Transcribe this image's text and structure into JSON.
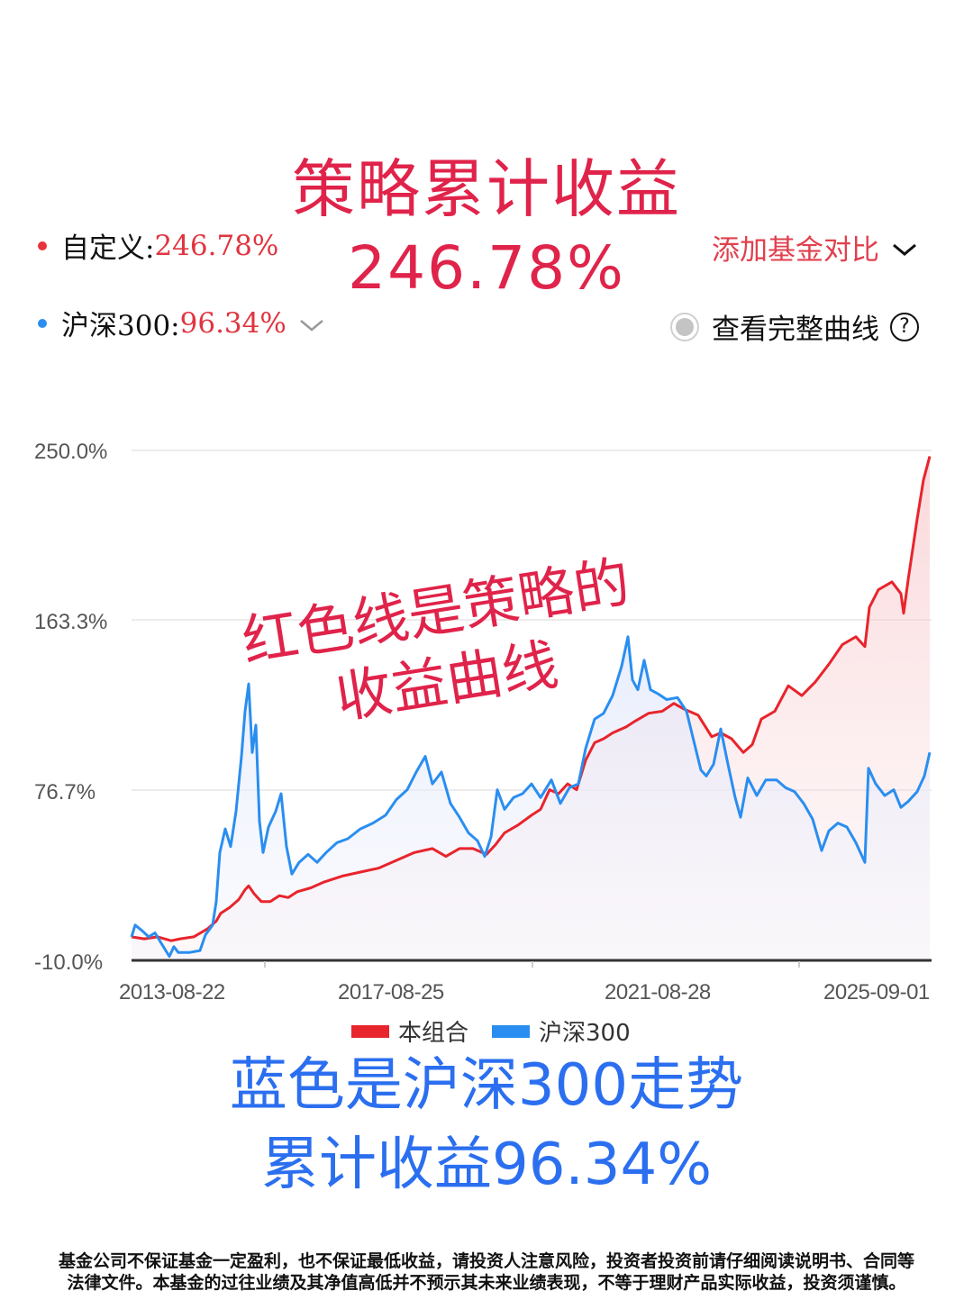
{
  "header": {
    "title_line1": "策略累计收益",
    "title_line2": "246.78%"
  },
  "legend_top": {
    "custom": {
      "label": "自定义:",
      "value": "246.78%",
      "dot_color": "#e8323c"
    },
    "hs300": {
      "label": "沪深300:",
      "value": "96.34%",
      "dot_color": "#2a8ef0",
      "chevron": "chevron-down-icon"
    },
    "add_compare": {
      "label": "添加基金对比",
      "chevron": "chevron-down-icon"
    },
    "full_curve": {
      "label": "查看完整曲线",
      "help_icon": "?"
    }
  },
  "annotation": {
    "line1": "红色线是策略的",
    "line2": "收益曲线"
  },
  "chart_data": {
    "type": "line",
    "title": "策略累计收益",
    "xlabel": "",
    "ylabel": "",
    "ylim": [
      -10.0,
      250.0
    ],
    "y_ticks": [
      "250.0%",
      "163.3%",
      "76.7%",
      "-10.0%"
    ],
    "x_ticks": [
      "2013-08-22",
      "2017-08-25",
      "2021-08-28",
      "2025-09-01"
    ],
    "grid": true,
    "legend_position": "bottom",
    "legend": [
      "本组合",
      "沪深300"
    ],
    "x_range": [
      "2012-01",
      "2025-09-01"
    ],
    "series": [
      {
        "name": "本组合",
        "color": "#e8242c",
        "final_value": 246.78,
        "points": [
          [
            146,
            2
          ],
          [
            160,
            1
          ],
          [
            175,
            2
          ],
          [
            190,
            0
          ],
          [
            200,
            1
          ],
          [
            215,
            2
          ],
          [
            230,
            6
          ],
          [
            240,
            10
          ],
          [
            245,
            14
          ],
          [
            255,
            17
          ],
          [
            265,
            21
          ],
          [
            272,
            26
          ],
          [
            276,
            28
          ],
          [
            282,
            24
          ],
          [
            290,
            20
          ],
          [
            300,
            20
          ],
          [
            310,
            23
          ],
          [
            320,
            22
          ],
          [
            330,
            25
          ],
          [
            345,
            27
          ],
          [
            360,
            30
          ],
          [
            380,
            33
          ],
          [
            400,
            35
          ],
          [
            420,
            37
          ],
          [
            440,
            41
          ],
          [
            460,
            45
          ],
          [
            480,
            47
          ],
          [
            495,
            43
          ],
          [
            510,
            47
          ],
          [
            525,
            47
          ],
          [
            540,
            44
          ],
          [
            550,
            49
          ],
          [
            560,
            55
          ],
          [
            575,
            59
          ],
          [
            590,
            64
          ],
          [
            600,
            67
          ],
          [
            610,
            77
          ],
          [
            620,
            75
          ],
          [
            630,
            80
          ],
          [
            640,
            77
          ],
          [
            650,
            92
          ],
          [
            660,
            101
          ],
          [
            670,
            103
          ],
          [
            680,
            106
          ],
          [
            695,
            109
          ],
          [
            705,
            112
          ],
          [
            720,
            116
          ],
          [
            735,
            117
          ],
          [
            748,
            121
          ],
          [
            760,
            118
          ],
          [
            775,
            115
          ],
          [
            790,
            104
          ],
          [
            800,
            106
          ],
          [
            812,
            103
          ],
          [
            825,
            96
          ],
          [
            835,
            100
          ],
          [
            845,
            113
          ],
          [
            860,
            117
          ],
          [
            875,
            130
          ],
          [
            890,
            125
          ],
          [
            905,
            132
          ],
          [
            920,
            141
          ],
          [
            935,
            151
          ],
          [
            950,
            155
          ],
          [
            960,
            150
          ],
          [
            965,
            170
          ],
          [
            975,
            179
          ],
          [
            990,
            183
          ],
          [
            1000,
            177
          ],
          [
            1003,
            167
          ],
          [
            1008,
            184
          ],
          [
            1018,
            215
          ],
          [
            1025,
            235
          ],
          [
            1032,
            247
          ]
        ]
      },
      {
        "name": "沪深300",
        "color": "#2a8ef0",
        "final_value": 96.34,
        "points": [
          [
            146,
            2
          ],
          [
            150,
            8
          ],
          [
            158,
            5
          ],
          [
            165,
            2
          ],
          [
            172,
            4
          ],
          [
            180,
            -2
          ],
          [
            188,
            -8
          ],
          [
            193,
            -3
          ],
          [
            198,
            -6
          ],
          [
            210,
            -6
          ],
          [
            222,
            -5
          ],
          [
            228,
            3
          ],
          [
            236,
            8
          ],
          [
            240,
            20
          ],
          [
            244,
            45
          ],
          [
            250,
            57
          ],
          [
            256,
            48
          ],
          [
            262,
            66
          ],
          [
            268,
            94
          ],
          [
            272,
            117
          ],
          [
            276,
            131
          ],
          [
            280,
            96
          ],
          [
            284,
            110
          ],
          [
            288,
            61
          ],
          [
            292,
            45
          ],
          [
            298,
            58
          ],
          [
            306,
            66
          ],
          [
            312,
            75
          ],
          [
            318,
            48
          ],
          [
            324,
            34
          ],
          [
            332,
            40
          ],
          [
            342,
            44
          ],
          [
            352,
            40
          ],
          [
            362,
            45
          ],
          [
            374,
            50
          ],
          [
            386,
            52
          ],
          [
            400,
            57
          ],
          [
            414,
            60
          ],
          [
            428,
            64
          ],
          [
            440,
            72
          ],
          [
            452,
            77
          ],
          [
            462,
            86
          ],
          [
            472,
            94
          ],
          [
            480,
            80
          ],
          [
            490,
            86
          ],
          [
            500,
            70
          ],
          [
            510,
            63
          ],
          [
            520,
            55
          ],
          [
            530,
            51
          ],
          [
            538,
            43
          ],
          [
            545,
            53
          ],
          [
            552,
            77
          ],
          [
            560,
            67
          ],
          [
            570,
            73
          ],
          [
            580,
            75
          ],
          [
            590,
            80
          ],
          [
            600,
            73
          ],
          [
            612,
            82
          ],
          [
            622,
            70
          ],
          [
            632,
            78
          ],
          [
            642,
            80
          ],
          [
            650,
            98
          ],
          [
            660,
            113
          ],
          [
            670,
            116
          ],
          [
            680,
            125
          ],
          [
            690,
            140
          ],
          [
            697,
            155
          ],
          [
            702,
            133
          ],
          [
            708,
            128
          ],
          [
            715,
            143
          ],
          [
            722,
            128
          ],
          [
            730,
            126
          ],
          [
            740,
            123
          ],
          [
            752,
            124
          ],
          [
            762,
            117
          ],
          [
            770,
            102
          ],
          [
            778,
            87
          ],
          [
            784,
            84
          ],
          [
            792,
            90
          ],
          [
            800,
            108
          ],
          [
            808,
            90
          ],
          [
            816,
            73
          ],
          [
            822,
            63
          ],
          [
            830,
            83
          ],
          [
            840,
            74
          ],
          [
            850,
            82
          ],
          [
            862,
            82
          ],
          [
            872,
            78
          ],
          [
            882,
            76
          ],
          [
            892,
            70
          ],
          [
            902,
            62
          ],
          [
            912,
            46
          ],
          [
            920,
            56
          ],
          [
            930,
            60
          ],
          [
            940,
            58
          ],
          [
            950,
            50
          ],
          [
            960,
            40
          ],
          [
            964,
            88
          ],
          [
            972,
            80
          ],
          [
            982,
            74
          ],
          [
            992,
            77
          ],
          [
            1000,
            68
          ],
          [
            1008,
            71
          ],
          [
            1018,
            76
          ],
          [
            1026,
            84
          ],
          [
            1032,
            96
          ]
        ]
      }
    ]
  },
  "chart_legend": [
    {
      "label": "本组合",
      "color": "#e8242c"
    },
    {
      "label": "沪深300",
      "color": "#2a8ef0"
    }
  ],
  "caption": {
    "line1": "蓝色是沪深300走势",
    "line2": "累计收益96.34%"
  },
  "disclaimer": {
    "line1": "基金公司不保证基金一定盈利，也不保证最低收益，请投资人注意风险，投资者投资前请仔细阅读说明书、合同等",
    "line2": "法律文件。本基金的过往业绩及其净值高低并不预示其未来业绩表现，不等于理财产品实际收益，投资须谨慎。"
  }
}
